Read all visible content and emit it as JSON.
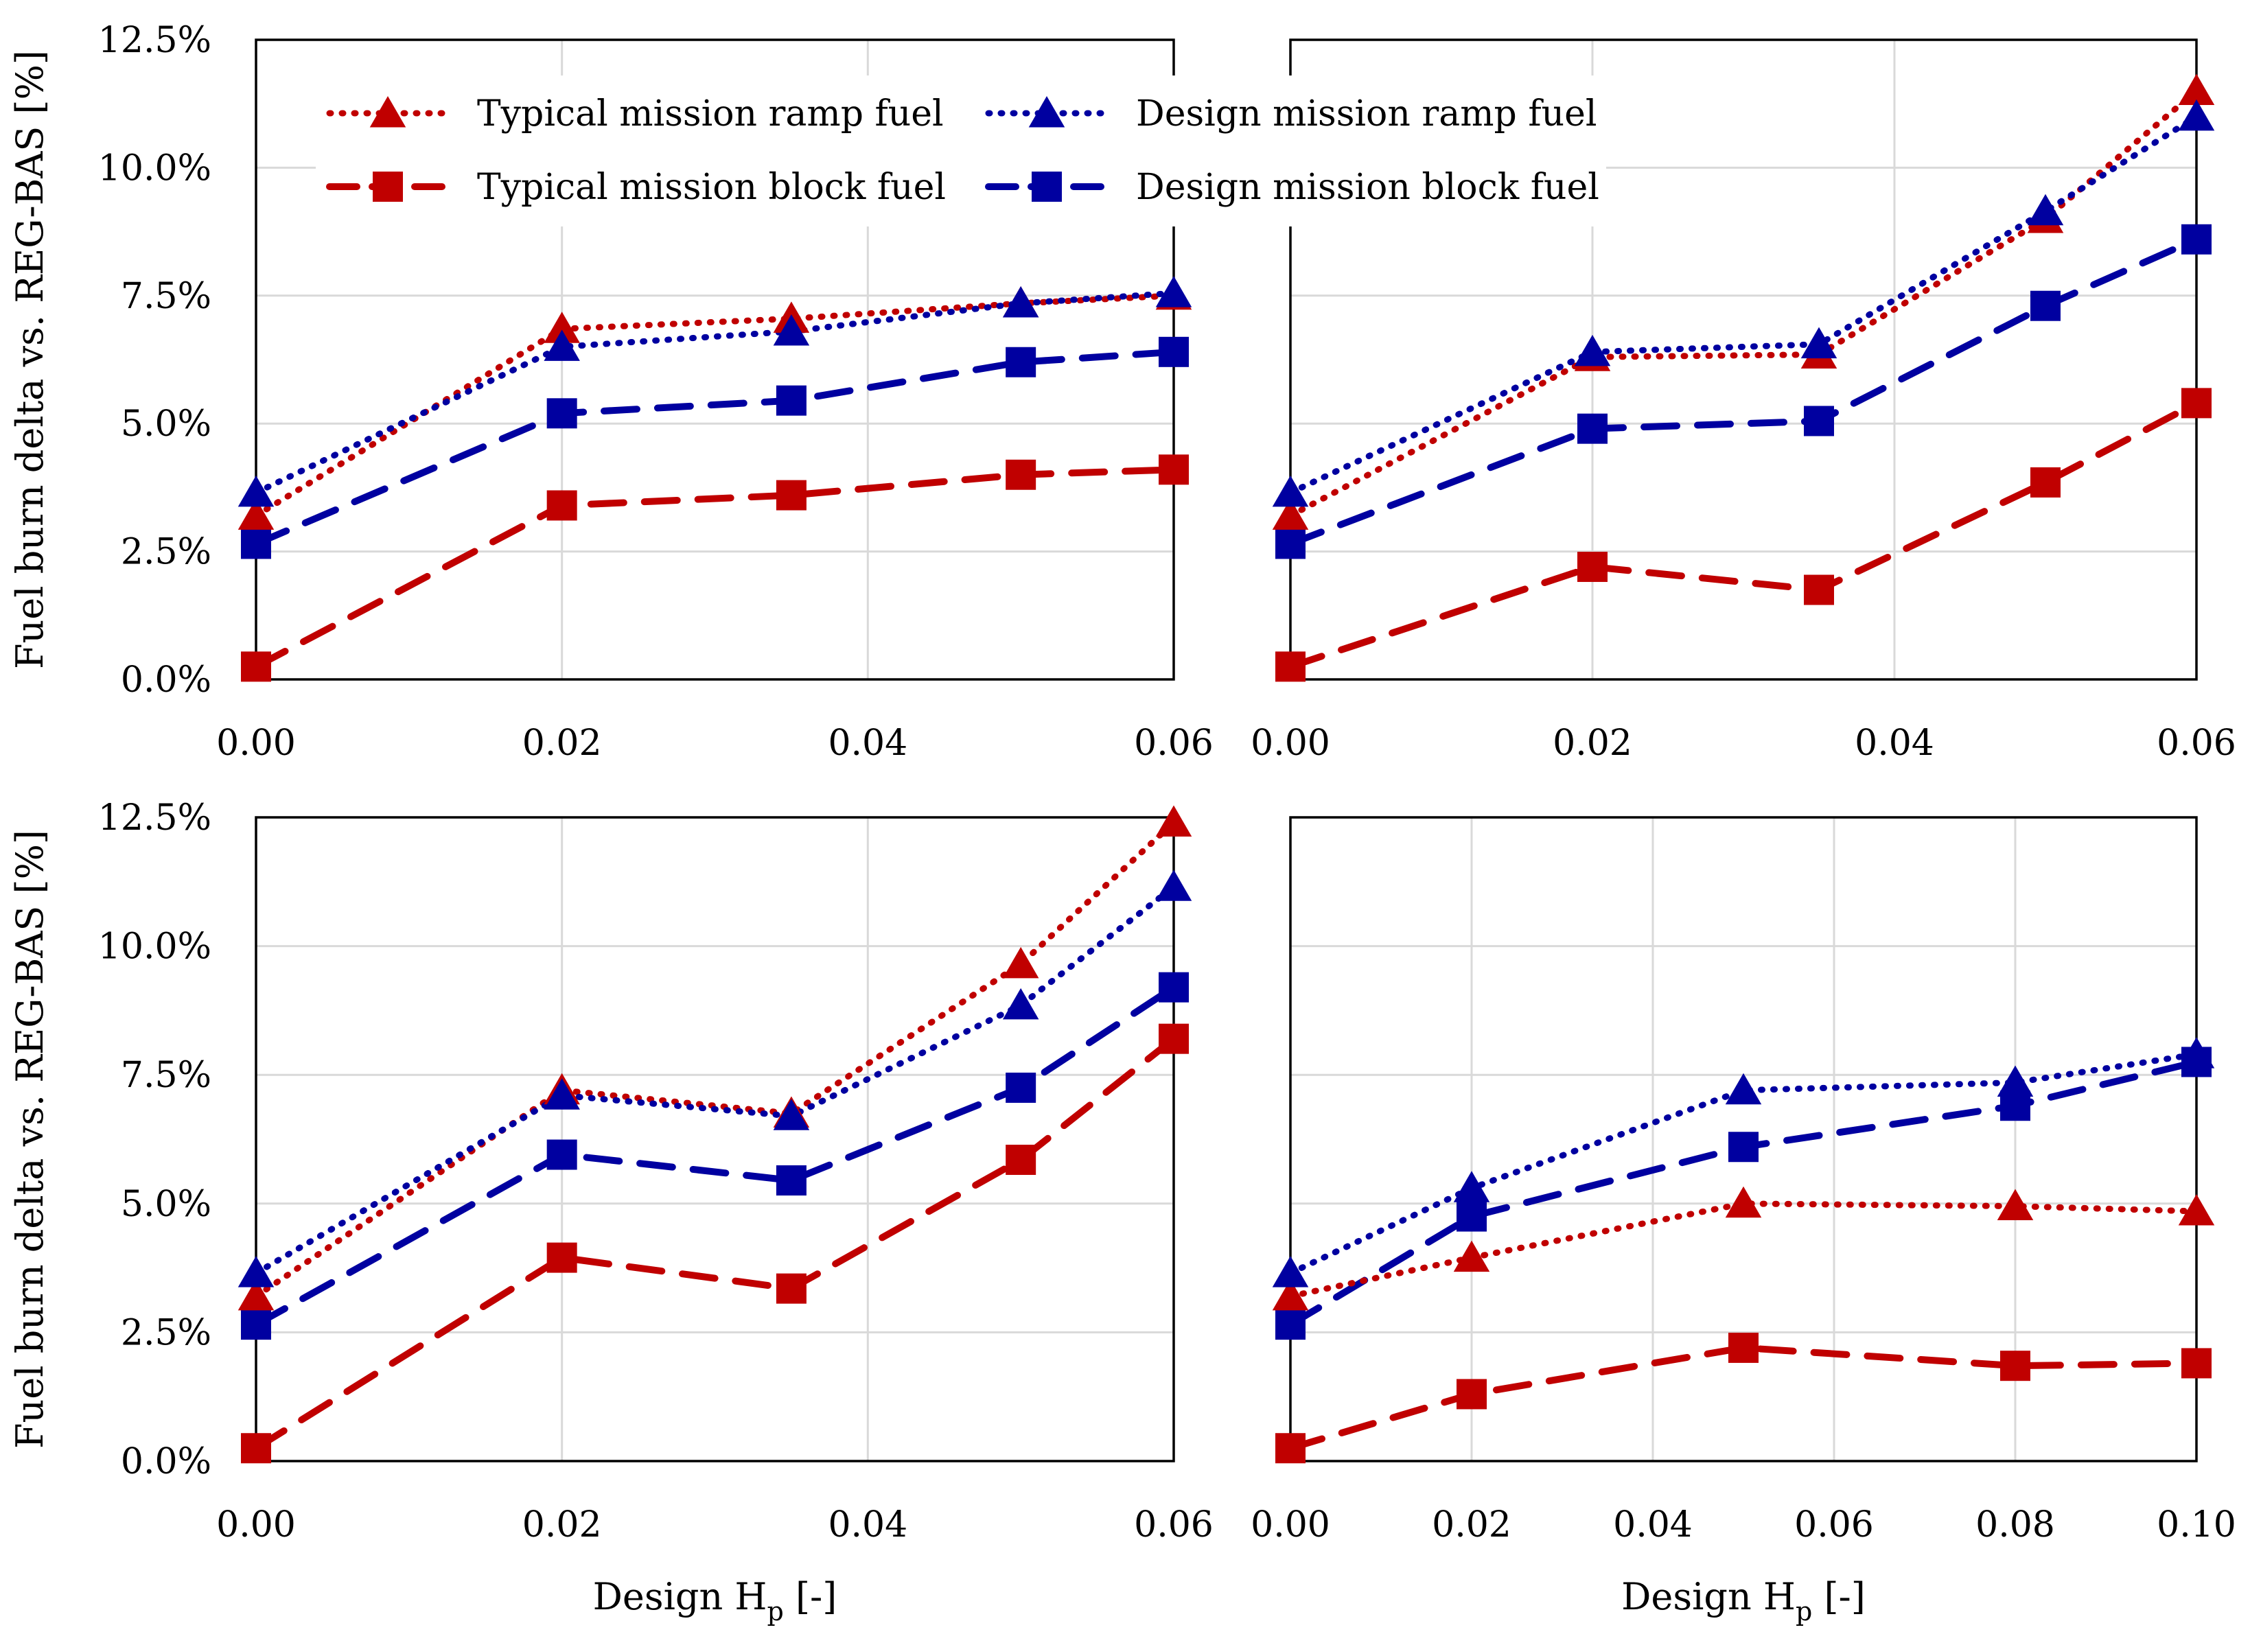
{
  "colors": {
    "typical": "#c00000",
    "design": "#0000a0",
    "grid": "#d9d9d9"
  },
  "legend": {
    "placement": "top-left of first panel",
    "entries": [
      {
        "label": "Typical mission ramp fuel",
        "color": "#c00000",
        "line": "dotted",
        "marker": "triangle"
      },
      {
        "label": "Design mission ramp fuel",
        "color": "#0000a0",
        "line": "dotted",
        "marker": "triangle"
      },
      {
        "label": "Typical mission block fuel",
        "color": "#c00000",
        "line": "dashed",
        "marker": "square"
      },
      {
        "label": "Design mission block fuel",
        "color": "#0000a0",
        "line": "dashed",
        "marker": "square"
      }
    ]
  },
  "chart_data": [
    {
      "type": "line",
      "ylabel": "Fuel burn delta vs. REG-BAS [%]",
      "xlabel": "",
      "xlim": [
        0,
        0.06
      ],
      "ylim": [
        0,
        12.5
      ],
      "xticks": [
        "0.00",
        "0.02",
        "0.04",
        "0.06"
      ],
      "yticks": [
        "0.0%",
        "2.5%",
        "5.0%",
        "7.5%",
        "10.0%",
        "12.5%"
      ],
      "grid": true,
      "x": [
        0,
        0.02,
        0.035,
        0.05,
        0.06
      ],
      "series": [
        {
          "name": "Typical mission ramp fuel",
          "values": [
            3.2,
            6.85,
            7.05,
            7.35,
            7.5
          ]
        },
        {
          "name": "Design mission ramp fuel",
          "values": [
            3.65,
            6.5,
            6.8,
            7.35,
            7.55
          ]
        },
        {
          "name": "Typical mission block fuel",
          "values": [
            0.25,
            3.4,
            3.6,
            4.0,
            4.1
          ]
        },
        {
          "name": "Design mission block fuel",
          "values": [
            2.65,
            5.2,
            5.45,
            6.2,
            6.4
          ]
        }
      ]
    },
    {
      "type": "line",
      "ylabel": "",
      "xlabel": "",
      "xlim": [
        0,
        0.06
      ],
      "ylim": [
        0,
        12.5
      ],
      "xticks": [
        "0.00",
        "0.02",
        "0.04",
        "0.06"
      ],
      "yticks": [],
      "grid": true,
      "x": [
        0,
        0.02,
        0.035,
        0.05,
        0.06
      ],
      "series": [
        {
          "name": "Typical mission ramp fuel",
          "values": [
            3.2,
            6.3,
            6.35,
            9.0,
            11.5
          ]
        },
        {
          "name": "Design mission ramp fuel",
          "values": [
            3.65,
            6.4,
            6.55,
            9.15,
            11.0
          ]
        },
        {
          "name": "Typical mission block fuel",
          "values": [
            0.25,
            2.2,
            1.75,
            3.85,
            5.4
          ]
        },
        {
          "name": "Design mission block fuel",
          "values": [
            2.65,
            4.9,
            5.05,
            7.3,
            8.6
          ]
        }
      ]
    },
    {
      "type": "line",
      "ylabel": "Fuel burn delta vs. REG-BAS [%]",
      "xlabel": "Design H",
      "xlabel_sub": "p",
      "xlabel_suffix": " [-]",
      "xlim": [
        0,
        0.06
      ],
      "ylim": [
        0,
        12.5
      ],
      "xticks": [
        "0.00",
        "0.02",
        "0.04",
        "0.06"
      ],
      "yticks": [
        "0.0%",
        "2.5%",
        "5.0%",
        "7.5%",
        "10.0%",
        "12.5%"
      ],
      "grid": true,
      "x": [
        0,
        0.02,
        0.035,
        0.05,
        0.06
      ],
      "series": [
        {
          "name": "Typical mission ramp fuel",
          "values": [
            3.2,
            7.2,
            6.75,
            9.65,
            12.4
          ]
        },
        {
          "name": "Design mission ramp fuel",
          "values": [
            3.65,
            7.1,
            6.7,
            8.85,
            11.15
          ]
        },
        {
          "name": "Typical mission block fuel",
          "values": [
            0.25,
            3.95,
            3.35,
            5.85,
            8.2
          ]
        },
        {
          "name": "Design mission block fuel",
          "values": [
            2.65,
            5.95,
            5.45,
            7.25,
            9.2
          ]
        }
      ]
    },
    {
      "type": "line",
      "ylabel": "",
      "xlabel": "Design H",
      "xlabel_sub": "p",
      "xlabel_suffix": " [-]",
      "xlim": [
        0,
        0.1
      ],
      "ylim": [
        0,
        12.5
      ],
      "xticks": [
        "0.00",
        "0.02",
        "0.04",
        "0.06",
        "0.08",
        "0.10"
      ],
      "yticks": [],
      "grid": true,
      "x": [
        0,
        0.02,
        0.05,
        0.08,
        0.1
      ],
      "series": [
        {
          "name": "Typical mission ramp fuel",
          "values": [
            3.2,
            3.95,
            5.0,
            4.95,
            4.85
          ]
        },
        {
          "name": "Design mission ramp fuel",
          "values": [
            3.65,
            5.3,
            7.2,
            7.35,
            7.9
          ]
        },
        {
          "name": "Typical mission block fuel",
          "values": [
            0.25,
            1.3,
            2.2,
            1.85,
            1.9
          ]
        },
        {
          "name": "Design mission block fuel",
          "values": [
            2.65,
            4.75,
            6.1,
            6.9,
            7.75
          ]
        }
      ]
    }
  ]
}
